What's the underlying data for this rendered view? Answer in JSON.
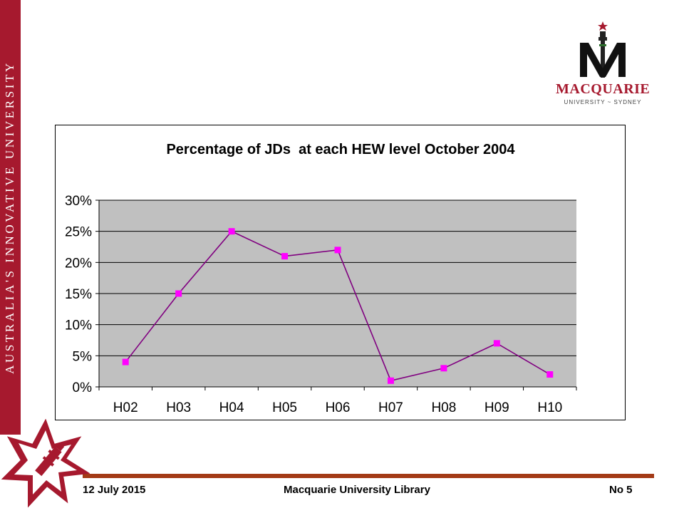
{
  "sidebar": {
    "tagline": "AUSTRALIA'S INNOVATIVE UNIVERSITY"
  },
  "logo": {
    "name": "MACQUARIE",
    "sub": "UNIVERSITY ~ SYDNEY"
  },
  "colors": {
    "brand_red": "#a6192e",
    "footer_rule": "#a33a16",
    "plot_area": "#c0c0c0",
    "series_line": "#800080",
    "series_marker": "#ff00ff"
  },
  "chart_data": {
    "type": "line",
    "title": "Percentage of JDs  at each HEW level October 2004",
    "categories": [
      "H02",
      "H03",
      "H04",
      "H05",
      "H06",
      "H07",
      "H08",
      "H09",
      "H10"
    ],
    "values": [
      0.04,
      0.15,
      0.25,
      0.21,
      0.22,
      0.01,
      0.03,
      0.07,
      0.02
    ],
    "ylim": [
      0,
      0.3
    ],
    "yticks": [
      "0%",
      "5%",
      "10%",
      "15%",
      "20%",
      "25%",
      "30%"
    ],
    "xlabel": "",
    "ylabel": "",
    "grid": true,
    "legend": "none"
  },
  "footer": {
    "date": "12 July 2015",
    "center": "Macquarie University Library",
    "page": "No 5"
  }
}
